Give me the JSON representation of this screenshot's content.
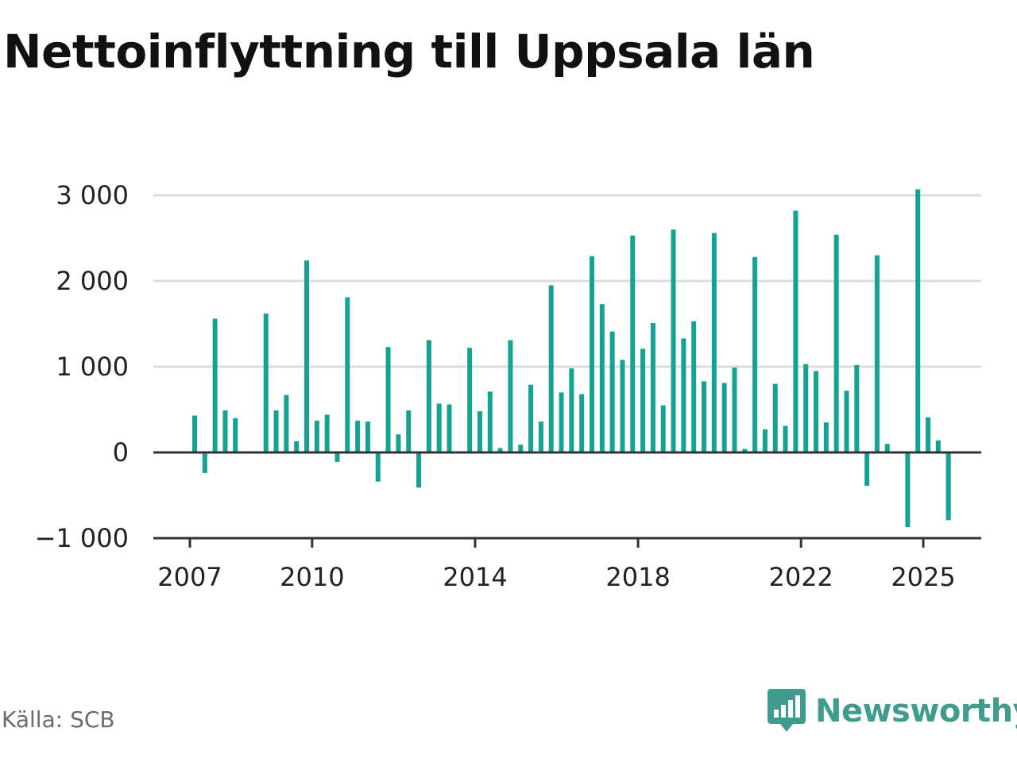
{
  "title": "Nettoinflyttning till Uppsala län",
  "source": "Källa: SCB",
  "brand": {
    "name": "Newsworthy",
    "icon": "newsworthy-logo-icon",
    "color": "#3f9c8e"
  },
  "colors": {
    "bar": "#14a392",
    "grid": "#dddddd",
    "axis": "#333333"
  },
  "chart_data": {
    "type": "bar",
    "title": "Nettoinflyttning till Uppsala län",
    "xlabel": "",
    "ylabel": "",
    "ylim": [
      -1000,
      3000
    ],
    "grid": true,
    "y_ticks": [
      {
        "value": -1000,
        "label": "−1 000"
      },
      {
        "value": 0,
        "label": "0"
      },
      {
        "value": 1000,
        "label": "1 000"
      },
      {
        "value": 2000,
        "label": "2 000"
      },
      {
        "value": 3000,
        "label": "3 000"
      }
    ],
    "x_ticks": [
      {
        "value": 2007,
        "label": "2007"
      },
      {
        "value": 2010,
        "label": "2010"
      },
      {
        "value": 2014,
        "label": "2014"
      },
      {
        "value": 2018,
        "label": "2018"
      },
      {
        "value": 2022,
        "label": "2022"
      },
      {
        "value": 2025,
        "label": "2025"
      }
    ],
    "x": [
      "2007-Q1",
      "2007-Q2",
      "2007-Q3",
      "2007-Q4",
      "2008-Q1",
      "2008-Q2",
      "2008-Q3",
      "2008-Q4",
      "2009-Q1",
      "2009-Q2",
      "2009-Q3",
      "2009-Q4",
      "2010-Q1",
      "2010-Q2",
      "2010-Q3",
      "2010-Q4",
      "2011-Q1",
      "2011-Q2",
      "2011-Q3",
      "2011-Q4",
      "2012-Q1",
      "2012-Q2",
      "2012-Q3",
      "2012-Q4",
      "2013-Q1",
      "2013-Q2",
      "2013-Q3",
      "2013-Q4",
      "2014-Q1",
      "2014-Q2",
      "2014-Q3",
      "2014-Q4",
      "2015-Q1",
      "2015-Q2",
      "2015-Q3",
      "2015-Q4",
      "2016-Q1",
      "2016-Q2",
      "2016-Q3",
      "2016-Q4",
      "2017-Q1",
      "2017-Q2",
      "2017-Q3",
      "2017-Q4",
      "2018-Q1",
      "2018-Q2",
      "2018-Q3",
      "2018-Q4",
      "2019-Q1",
      "2019-Q2",
      "2019-Q3",
      "2019-Q4",
      "2020-Q1",
      "2020-Q2",
      "2020-Q3",
      "2020-Q4",
      "2021-Q1",
      "2021-Q2",
      "2021-Q3",
      "2021-Q4",
      "2022-Q1",
      "2022-Q2",
      "2022-Q3",
      "2022-Q4",
      "2023-Q1",
      "2023-Q2",
      "2023-Q3",
      "2023-Q4",
      "2024-Q1",
      "2024-Q2",
      "2024-Q3",
      "2024-Q4",
      "2025-Q1",
      "2025-Q2",
      "2025-Q3",
      "2025-Q4"
    ],
    "values": [
      430,
      -240,
      1560,
      490,
      400,
      null,
      null,
      1620,
      490,
      670,
      130,
      2240,
      370,
      440,
      -110,
      1810,
      370,
      360,
      -340,
      1230,
      210,
      490,
      -410,
      1310,
      570,
      560,
      null,
      1220,
      480,
      710,
      50,
      1310,
      90,
      790,
      360,
      1950,
      700,
      980,
      680,
      2290,
      1730,
      1410,
      1080,
      2530,
      1210,
      1510,
      550,
      2600,
      1330,
      1530,
      830,
      2560,
      810,
      990,
      40,
      2280,
      270,
      800,
      310,
      2820,
      1030,
      950,
      350,
      2540,
      720,
      1020,
      -390,
      2300,
      100,
      null,
      -870,
      3070,
      410,
      140,
      -790,
      null
    ]
  }
}
